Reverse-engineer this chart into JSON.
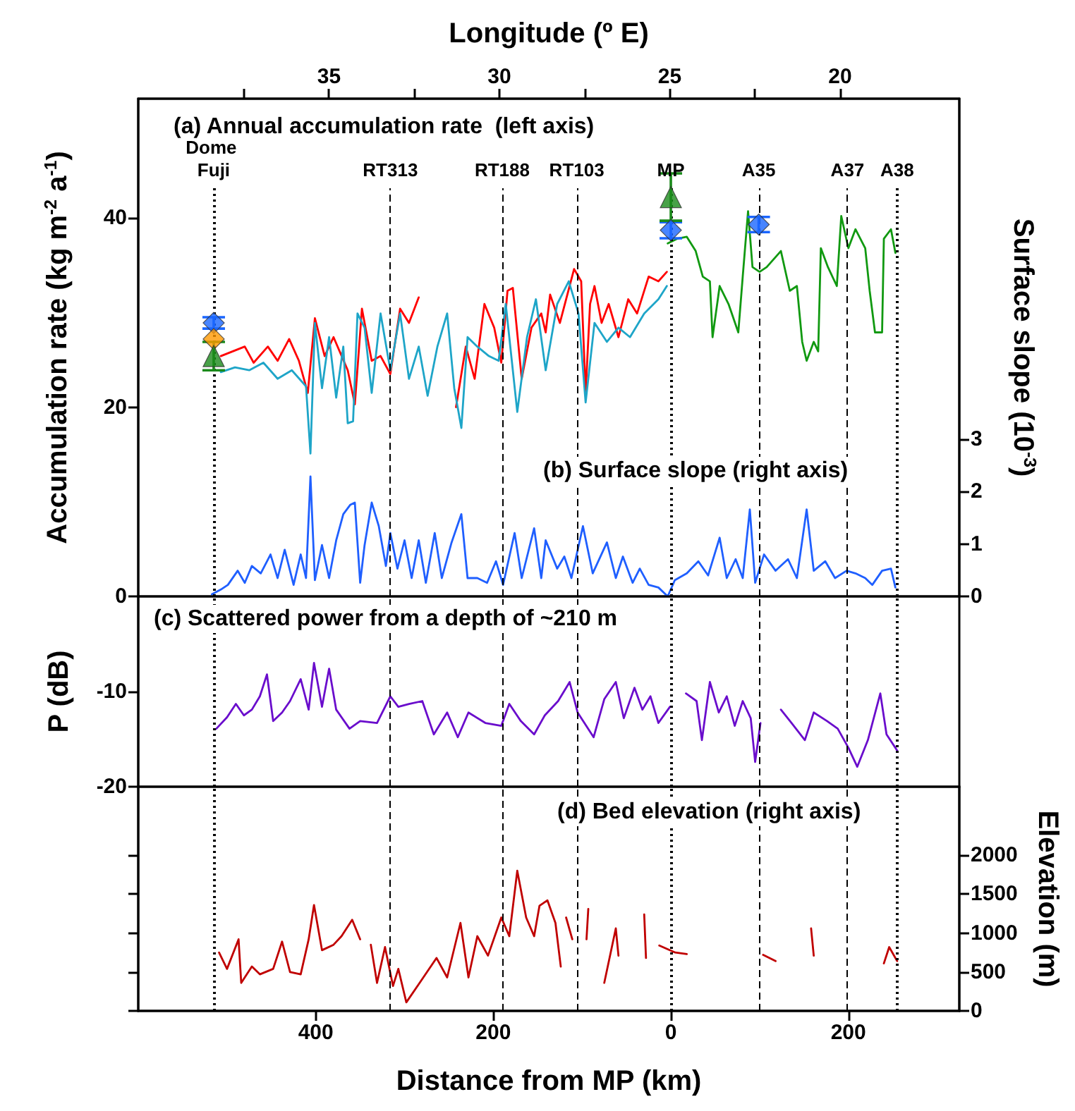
{
  "chart_data": [
    {
      "type": "line",
      "x2label": "Longitude (º E)",
      "ylabel": "Accumulation rate (kg m$^{-2}$ a$^{-1}$)",
      "y2label": "Surface slope (10$^{-3}$)",
      "annotations": [
        "(a) Annual accumulation rate  (left axis)",
        "(b) Surface slope (right axis)"
      ],
      "xlim": [
        -600,
        325
      ],
      "x2lim": [
        40.6,
        16.5
      ],
      "x2ticks": [
        {
          "value": 37.5,
          "label": null
        },
        35,
        {
          "value": 32.5,
          "label": null
        },
        30,
        {
          "value": 27.5,
          "label": null
        },
        25,
        {
          "value": 22.5,
          "label": null
        },
        20
      ],
      "ylim": [
        0,
        52.6
      ],
      "yticks": [
        0,
        20,
        40
      ],
      "y2lim": [
        0,
        9.5
      ],
      "y2ticks": [
        0,
        1,
        2,
        3
      ],
      "ref_lines": [
        {
          "axis": "x",
          "value": -515,
          "label": "Dome Fuji",
          "line_style": "dotted"
        },
        {
          "axis": "x",
          "value": -316,
          "label": "RT313",
          "line_style": "dashed"
        },
        {
          "axis": "x",
          "value": -190,
          "label": "RT188",
          "line_style": "dashed"
        },
        {
          "axis": "x",
          "value": -106,
          "label": "RT103",
          "line_style": "dashed"
        },
        {
          "axis": "x",
          "value": 0,
          "label": "MP",
          "line_style": "dotted"
        },
        {
          "axis": "x",
          "value": 99,
          "label": "A35",
          "line_style": "dashed"
        },
        {
          "axis": "x",
          "value": 199,
          "label": "A37",
          "line_style": "dashed"
        },
        {
          "axis": "x",
          "value": 255,
          "label": "A38",
          "line_style": "dotted"
        }
      ],
      "series": [
        {
          "color": "#ff0000",
          "marker": "none",
          "x": [
            -507,
            -480,
            -470,
            -454,
            -443,
            -430,
            -419,
            -409,
            -401,
            -390,
            -380,
            -364,
            -356,
            -348,
            -337,
            -327,
            -316,
            -305,
            -295,
            -284,
            -263,
            -242,
            -231,
            -221,
            -210,
            -199,
            -191,
            -184,
            -178,
            -168,
            -157,
            -146,
            -141,
            -136,
            -125,
            -109,
            -101,
            -96,
            -91,
            -86,
            -78,
            -70,
            -59,
            -48,
            -38,
            -25,
            -14,
            -4.5
          ],
          "values": [
            25.4,
            26.4,
            24.7,
            26.4,
            24.9,
            27.2,
            24.9,
            21.5,
            29.4,
            25.4,
            27.4,
            23.9,
            20.3,
            30.4,
            24.9,
            25.4,
            23.5,
            30.4,
            28.9,
            31.6,
            null,
            20.0,
            26.4,
            23.0,
            30.9,
            28.4,
            24.7,
            32.3,
            32.6,
            23.0,
            28.4,
            29.9,
            27.9,
            31.9,
            28.9,
            34.6,
            33.3,
            21.5,
            30.9,
            32.8,
            28.9,
            30.9,
            27.4,
            31.4,
            29.9,
            33.8,
            33.3,
            34.3
          ]
        },
        {
          "color": "#1ea5c8",
          "marker": "none",
          "x": [
            -507,
            -491,
            -475,
            -459,
            -443,
            -427,
            -411,
            -406,
            -401,
            -393,
            -385,
            -377,
            -369,
            -364,
            -358,
            -353,
            -345,
            -337,
            -327,
            -316,
            -305,
            -295,
            -284,
            -274,
            -263,
            -252,
            -244,
            -236,
            -229,
            -218,
            -205,
            -194,
            -186,
            -173,
            -162,
            -152,
            -141,
            -128,
            -115,
            -104,
            -96,
            -86,
            -72,
            -59,
            -46,
            -30,
            -14,
            -4.5
          ],
          "values": [
            23.7,
            24.2,
            23.9,
            24.7,
            23.0,
            23.9,
            22.2,
            15.1,
            28.9,
            22.0,
            27.4,
            21.0,
            26.4,
            18.3,
            18.5,
            29.9,
            28.4,
            21.5,
            29.9,
            23.9,
            29.9,
            23.0,
            26.4,
            21.2,
            26.4,
            29.9,
            22.0,
            17.8,
            27.4,
            26.4,
            25.4,
            24.9,
            30.9,
            19.5,
            27.4,
            31.4,
            23.9,
            30.9,
            33.3,
            29.9,
            20.5,
            28.9,
            26.9,
            28.4,
            27.4,
            29.9,
            31.4,
            32.8
          ]
        },
        {
          "color": "#119911",
          "marker": "none",
          "x": [
            -3.5,
            7,
            18,
            28,
            36,
            44,
            47,
            55,
            65,
            76,
            81,
            87,
            92,
            100,
            108,
            124,
            134,
            142,
            148,
            153,
            161,
            166,
            169,
            177,
            187,
            192,
            200,
            208,
            219,
            224,
            230,
            238,
            240,
            248,
            253
          ],
          "values": [
            37.3,
            37.8,
            38.0,
            36.5,
            33.8,
            33.3,
            27.4,
            32.8,
            30.9,
            27.9,
            33.8,
            40.7,
            34.8,
            34.3,
            34.8,
            36.5,
            32.3,
            32.8,
            26.9,
            24.9,
            26.9,
            25.9,
            36.8,
            34.8,
            32.8,
            40.2,
            36.8,
            38.8,
            36.8,
            32.3,
            27.9,
            27.9,
            37.8,
            38.8,
            36.3
          ]
        },
        {
          "type": "scatter",
          "color": "#1a66ff",
          "marker": "diamond",
          "x": [
            -515,
            0,
            99
          ],
          "values": [
            28.9,
            38.7,
            39.3
          ],
          "errors": [
            0.6,
            0.85,
            0.8
          ]
        },
        {
          "type": "scatter",
          "color": "#ff9900",
          "marker": "diamond",
          "x": [
            -515
          ],
          "values": [
            27.2
          ]
        },
        {
          "type": "scatter",
          "color": "#1a8a1a",
          "marker": "triangle",
          "x": [
            -515,
            0
          ],
          "values": [
            25.4,
            42.2
          ],
          "errors": [
            1.5,
            2.5
          ]
        },
        {
          "axis": "y2",
          "color": "#1f5fff",
          "marker": "none",
          "x": [
            -517,
            -507,
            -499,
            -488,
            -480,
            -472,
            -462,
            -451,
            -443,
            -435,
            -425,
            -417,
            -411,
            -406,
            -401,
            -393,
            -385,
            -377,
            -369,
            -361,
            -356,
            -350,
            -345,
            -337,
            -329,
            -321,
            -316,
            -308,
            -300,
            -292,
            -284,
            -276,
            -266,
            -258,
            -247,
            -236,
            -229,
            -218,
            -207,
            -197,
            -189,
            -176,
            -168,
            -154,
            -146,
            -141,
            -128,
            -120,
            -112,
            -99,
            -88,
            -72,
            -62,
            -54,
            -43,
            -35,
            -25,
            -14,
            -3.5,
            4.5,
            18,
            31,
            42,
            55,
            63,
            73,
            81,
            89,
            95,
            105,
            118,
            132,
            142,
            153,
            161,
            174,
            185,
            198,
            208,
            219,
            227,
            238,
            248,
            253
          ],
          "values": [
            0.04,
            0.13,
            0.22,
            0.49,
            0.26,
            0.58,
            0.44,
            0.8,
            0.35,
            0.89,
            0.22,
            0.8,
            0.35,
            2.29,
            0.31,
            0.98,
            0.35,
            1.07,
            1.57,
            1.75,
            1.79,
            0.26,
            0.98,
            1.79,
            1.34,
            0.58,
            1.21,
            0.53,
            1.07,
            0.35,
            1.07,
            0.26,
            1.21,
            0.35,
            1.03,
            1.57,
            0.35,
            0.35,
            0.26,
            0.67,
            0.22,
            1.21,
            0.35,
            1.3,
            0.35,
            1.07,
            0.53,
            0.76,
            0.35,
            1.34,
            0.44,
            1.03,
            0.35,
            0.76,
            0.26,
            0.53,
            0.22,
            0.17,
            0.0,
            0.31,
            0.44,
            0.67,
            0.4,
            1.12,
            0.35,
            0.71,
            0.35,
            1.66,
            0.26,
            0.8,
            0.49,
            0.71,
            0.35,
            1.66,
            0.49,
            0.67,
            0.35,
            0.49,
            0.44,
            0.35,
            0.22,
            0.49,
            0.53,
            0.17
          ]
        }
      ]
    },
    {
      "type": "line",
      "ylabel": "P (dB)",
      "annotations": [
        "(c) Scattered power from a depth of ~210 m"
      ],
      "xlim": [
        -600,
        325
      ],
      "ylim": [
        -20,
        0
      ],
      "yticks": [
        -20,
        -10
      ],
      "ref_lines": [
        {
          "axis": "x",
          "value": -515,
          "line_style": "dotted"
        },
        {
          "axis": "x",
          "value": -316,
          "line_style": "dashed"
        },
        {
          "axis": "x",
          "value": -190,
          "line_style": "dashed"
        },
        {
          "axis": "x",
          "value": -106,
          "line_style": "dashed"
        },
        {
          "axis": "x",
          "value": 0,
          "line_style": "dotted"
        },
        {
          "axis": "x",
          "value": 99,
          "line_style": "dashed"
        },
        {
          "axis": "x",
          "value": 199,
          "line_style": "dashed"
        },
        {
          "axis": "x",
          "value": 255,
          "line_style": "dotted"
        }
      ],
      "series": [
        {
          "color": "#6a0dcc",
          "marker": "none",
          "x": [
            -512,
            -500,
            -490,
            -481,
            -472,
            -463,
            -455,
            -448,
            -438,
            -429,
            -417,
            -408,
            -402,
            -393,
            -385,
            -377,
            -362,
            -350,
            -331,
            -316,
            -307,
            -295,
            -280,
            -267,
            -252,
            -240,
            -228,
            -209,
            -191,
            -182,
            -169,
            -154,
            -142,
            -127,
            -114,
            -105,
            -87,
            -75,
            -62,
            -53,
            -41,
            -32,
            -23,
            -14,
            -1,
            8,
            17,
            29,
            35,
            44,
            54,
            63,
            72,
            81,
            90,
            95,
            101,
            112,
            124,
            136,
            151,
            161,
            176,
            188,
            200,
            210,
            222,
            236,
            243,
            255
          ],
          "values": [
            -13.9,
            -12.7,
            -11.3,
            -12.5,
            -11.9,
            -10.5,
            -8.2,
            -13.1,
            -12.2,
            -11.0,
            -8.7,
            -11.9,
            -7.0,
            -11.6,
            -7.6,
            -11.9,
            -13.9,
            -13.1,
            -13.3,
            -10.5,
            -11.6,
            -11.3,
            -11.0,
            -14.5,
            -12.2,
            -14.8,
            -12.2,
            -13.3,
            -13.6,
            -11.3,
            -13.1,
            -14.5,
            -12.5,
            -11.0,
            -9.0,
            -12.2,
            -14.8,
            -10.8,
            -9.0,
            -12.8,
            -9.6,
            -11.9,
            -10.5,
            -13.3,
            -11.6,
            null,
            -10.2,
            -11.0,
            -15.1,
            -9.0,
            -12.2,
            -10.5,
            -13.6,
            -11.0,
            -12.8,
            -17.4,
            -13.3,
            null,
            -11.9,
            -13.3,
            -15.1,
            -12.2,
            -13.1,
            -13.9,
            -15.9,
            -17.9,
            -15.1,
            -10.2,
            -14.5,
            -16.2
          ]
        }
      ]
    },
    {
      "type": "line",
      "xlabel": "Distance from MP (km)",
      "y2label": "Elevation (m)",
      "annotations": [
        "(d) Bed elevation (right axis)"
      ],
      "xlim": [
        -600,
        325
      ],
      "xticks": [
        {
          "value": -400,
          "label": "400"
        },
        {
          "value": -200,
          "label": "200"
        },
        0,
        200
      ],
      "y2lim": [
        0,
        2880
      ],
      "y2ticks": [
        0,
        500,
        1000,
        1500,
        2000
      ],
      "ref_lines": [
        {
          "axis": "x",
          "value": -515,
          "line_style": "dotted"
        },
        {
          "axis": "x",
          "value": -316,
          "line_style": "dashed"
        },
        {
          "axis": "x",
          "value": -190,
          "line_style": "dashed"
        },
        {
          "axis": "x",
          "value": -106,
          "line_style": "dashed"
        },
        {
          "axis": "x",
          "value": 0,
          "line_style": "dotted"
        },
        {
          "axis": "x",
          "value": 99,
          "line_style": "dashed"
        },
        {
          "axis": "x",
          "value": 199,
          "line_style": "dashed"
        },
        {
          "axis": "x",
          "value": 255,
          "line_style": "dotted"
        }
      ],
      "series": [
        {
          "axis": "y2",
          "color": "#c00000",
          "marker": "none",
          "x": [
            -509,
            -500,
            -487,
            -484,
            -472,
            -463,
            -448,
            -438,
            -429,
            -417,
            -408,
            -402,
            -393,
            -380,
            -371,
            -359,
            -350,
            -344,
            -338,
            -331,
            -322,
            -313,
            -307,
            -298,
            -283,
            -264,
            -252,
            -237,
            -228,
            -218,
            -206,
            -191,
            -182,
            -173,
            -163,
            -154,
            -148,
            -139,
            -130,
            -124,
            -121,
            -118,
            -111,
            -102,
            -95,
            -93,
            -84,
            -75,
            -62,
            -59,
            -45,
            -30,
            -28,
            -18,
            -13,
            5,
            18,
            60,
            104,
            118,
            140,
            158,
            161,
            200,
            240,
            246,
            255
          ],
          "values": [
            750,
            540,
            920,
            360,
            570,
            470,
            540,
            890,
            500,
            470,
            920,
            1360,
            780,
            850,
            960,
            1170,
            920,
            null,
            850,
            360,
            820,
            320,
            540,
            110,
            360,
            680,
            430,
            1130,
            430,
            960,
            710,
            1200,
            960,
            1800,
            1200,
            960,
            1350,
            1420,
            1130,
            570,
            null,
            1200,
            920,
            null,
            920,
            1310,
            null,
            360,
            1060,
            710,
            null,
            1240,
            680,
            null,
            840,
            750,
            730,
            null,
            720,
            640,
            null,
            1060,
            710,
            null,
            610,
            820,
            640
          ]
        }
      ]
    }
  ]
}
